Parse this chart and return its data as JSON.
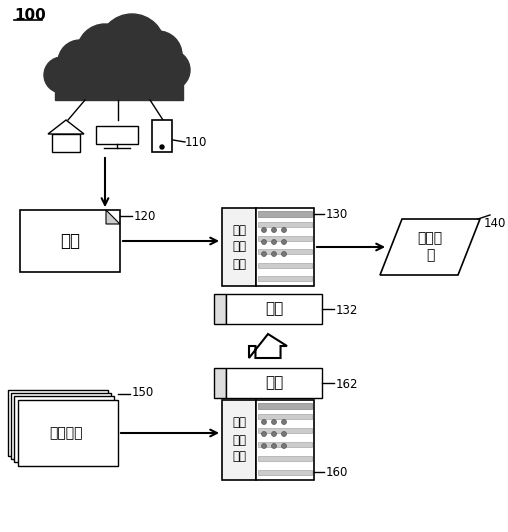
{
  "bg_color": "#ffffff",
  "title": "100",
  "label_110": "110",
  "label_120": "120",
  "label_130": "130",
  "label_132": "132",
  "label_140": "140",
  "label_150": "150",
  "label_160": "160",
  "label_162": "162",
  "text_data": "数据",
  "text_compute1": "第一\n计算\n系统",
  "text_model1": "模型",
  "text_comm": "通信模\n式",
  "text_sample": "样本数据",
  "text_compute2": "第二\n计算\n系统",
  "text_model2": "模型",
  "cloud_color": "#333333",
  "line_color": "#000000",
  "box_fc": "#ffffff",
  "box_ec": "#000000",
  "rack_left_fc": "#f0f0f0",
  "rack_stripe_fc": "#bbbbbb",
  "model_left_fc": "#dddddd"
}
